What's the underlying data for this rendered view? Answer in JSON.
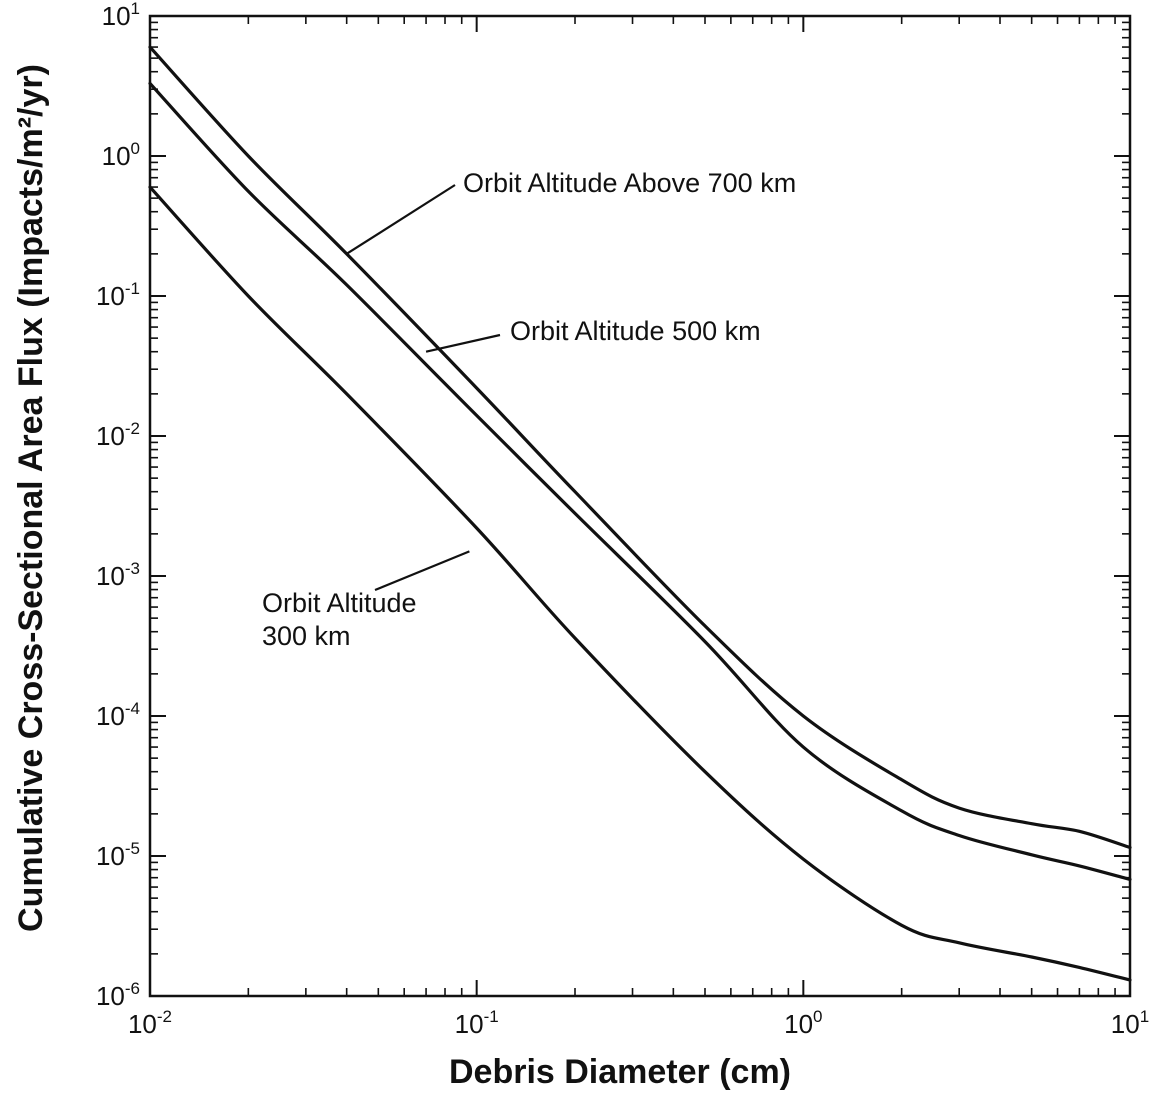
{
  "chart_data": {
    "type": "line",
    "xlabel": "Debris Diameter (cm)",
    "ylabel": "Cumulative Cross-Sectional Area Flux (Impacts/m²/yr)",
    "xscale": "log",
    "yscale": "log",
    "xlim": [
      0.01,
      10
    ],
    "ylim": [
      1e-06,
      10
    ],
    "grid": false,
    "x_ticks": [
      {
        "base": "10",
        "exp": "-2",
        "value": 0.01
      },
      {
        "base": "10",
        "exp": "-1",
        "value": 0.1
      },
      {
        "base": "10",
        "exp": "0",
        "value": 1
      },
      {
        "base": "10",
        "exp": "1",
        "value": 10
      }
    ],
    "y_ticks": [
      {
        "base": "10",
        "exp": "1",
        "value": 10
      },
      {
        "base": "10",
        "exp": "0",
        "value": 1
      },
      {
        "base": "10",
        "exp": "-1",
        "value": 0.1
      },
      {
        "base": "10",
        "exp": "-2",
        "value": 0.01
      },
      {
        "base": "10",
        "exp": "-3",
        "value": 0.001
      },
      {
        "base": "10",
        "exp": "-4",
        "value": 0.0001
      },
      {
        "base": "10",
        "exp": "-5",
        "value": 1e-05
      },
      {
        "base": "10",
        "exp": "-6",
        "value": 1e-06
      }
    ],
    "series": [
      {
        "points": [
          [
            0.01,
            6.0
          ],
          [
            0.02,
            1.0
          ],
          [
            0.04,
            0.2
          ],
          [
            0.1,
            0.022
          ],
          [
            0.2,
            0.004
          ],
          [
            0.5,
            0.00044
          ],
          [
            1.0,
            0.0001
          ],
          [
            2.0,
            3.5e-05
          ],
          [
            3.0,
            2.2e-05
          ],
          [
            5.0,
            1.7e-05
          ],
          [
            7.0,
            1.5e-05
          ],
          [
            10.0,
            1.15e-05
          ]
        ]
      },
      {
        "points": [
          [
            0.01,
            3.3
          ],
          [
            0.02,
            0.56
          ],
          [
            0.04,
            0.12
          ],
          [
            0.1,
            0.014
          ],
          [
            0.2,
            0.0028
          ],
          [
            0.5,
            0.00034
          ],
          [
            1.0,
            6e-05
          ],
          [
            2.0,
            2.1e-05
          ],
          [
            3.0,
            1.4e-05
          ],
          [
            5.0,
            1.02e-05
          ],
          [
            7.0,
            8.5e-06
          ],
          [
            10.0,
            6.8e-06
          ]
        ]
      },
      {
        "points": [
          [
            0.01,
            0.6
          ],
          [
            0.02,
            0.1
          ],
          [
            0.04,
            0.02
          ],
          [
            0.1,
            0.0022
          ],
          [
            0.2,
            0.00036
          ],
          [
            0.5,
            4e-05
          ],
          [
            1.0,
            9.5e-06
          ],
          [
            2.0,
            3.2e-06
          ],
          [
            3.0,
            2.4e-06
          ],
          [
            5.0,
            1.9e-06
          ],
          [
            7.0,
            1.6e-06
          ],
          [
            10.0,
            1.3e-06
          ]
        ]
      }
    ],
    "annotations": [
      {
        "lines": [
          "Orbit Altitude Above 700 km"
        ],
        "target": [
          0.04,
          0.2
        ]
      },
      {
        "lines": [
          "Orbit Altitude 500 km"
        ],
        "target": [
          0.07,
          0.04
        ]
      },
      {
        "lines": [
          "Orbit Altitude",
          "300 km"
        ],
        "target": [
          0.095,
          0.0015
        ]
      }
    ]
  }
}
